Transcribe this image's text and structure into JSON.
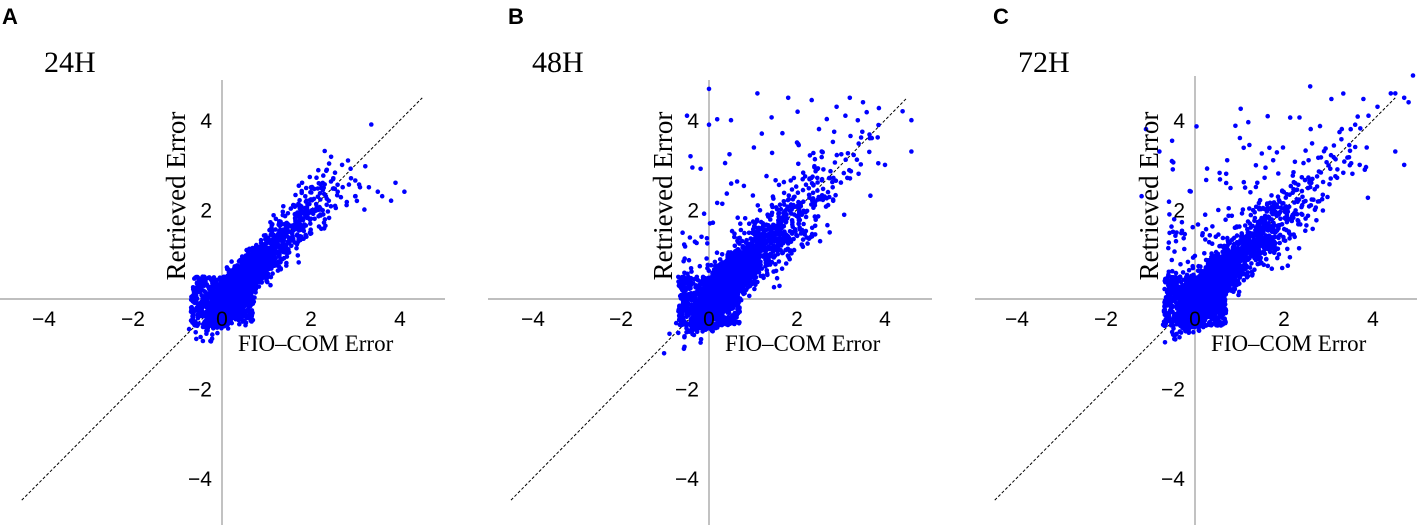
{
  "chart_data": [
    {
      "panel": "A",
      "type": "scatter",
      "title": "24H",
      "xlabel": "FIO–COM Error",
      "ylabel": "Retrieved Error",
      "xlim": [
        -5,
        5
      ],
      "ylim": [
        -5,
        5
      ],
      "xticks": [
        "−4",
        "−2",
        "0",
        "2",
        "4"
      ],
      "yticks": [
        "4",
        "2",
        "−2",
        "−4"
      ],
      "reference_line": {
        "x": [
          -4.5,
          4.5
        ],
        "y": [
          -4.5,
          4.5
        ]
      },
      "marker_color": "#0000ff",
      "cluster": {
        "center": [
          0.3,
          0.2
        ],
        "core_spread": 0.28,
        "slope": 0.95,
        "noise": 0.22,
        "tail_x_max": 2.2,
        "tail_noise": 0.35,
        "outlier_count": 0
      },
      "points": [
        [
          2.7,
          3.0
        ],
        [
          2.9,
          2.7
        ],
        [
          3.1,
          2.5
        ],
        [
          3.3,
          2.5
        ],
        [
          3.5,
          2.4
        ],
        [
          3.6,
          2.3
        ],
        [
          3.8,
          2.2
        ],
        [
          2.8,
          2.1
        ],
        [
          3.2,
          2.0
        ],
        [
          3.9,
          2.6
        ],
        [
          4.1,
          2.4
        ],
        [
          2.5,
          2.7
        ],
        [
          2.6,
          2.4
        ],
        [
          2.4,
          2.2
        ],
        [
          3.0,
          2.3
        ],
        [
          1.8,
          2.6
        ],
        [
          2.0,
          2.5
        ],
        [
          1.9,
          2.2
        ],
        [
          1.6,
          2.1
        ],
        [
          2.2,
          2.0
        ]
      ]
    },
    {
      "panel": "B",
      "type": "scatter",
      "title": "48H",
      "xlabel": "FIO–COM Error",
      "ylabel": "Retrieved Error",
      "xlim": [
        -5,
        5
      ],
      "ylim": [
        -5,
        5
      ],
      "xticks": [
        "−4",
        "−2",
        "0",
        "2",
        "4"
      ],
      "yticks": [
        "4",
        "2",
        "−2",
        "−4"
      ],
      "reference_line": {
        "x": [
          -4.5,
          4.5
        ],
        "y": [
          -4.5,
          4.5
        ]
      },
      "marker_color": "#0000ff",
      "cluster": {
        "center": [
          0.3,
          0.2
        ],
        "core_spread": 0.3,
        "slope": 0.9,
        "noise": 0.25,
        "tail_x_max": 2.4,
        "tail_noise": 0.45,
        "outlier_count": 150
      },
      "points": [
        [
          0.0,
          4.7
        ],
        [
          1.1,
          4.6
        ],
        [
          1.8,
          4.5
        ],
        [
          3.2,
          4.5
        ],
        [
          3.5,
          4.4
        ],
        [
          4.4,
          4.2
        ],
        [
          4.6,
          4.0
        ],
        [
          2.9,
          4.3
        ],
        [
          3.1,
          4.1
        ],
        [
          4.6,
          3.3
        ],
        [
          -0.5,
          4.1
        ],
        [
          0.0,
          3.9
        ],
        [
          0.5,
          4.0
        ],
        [
          1.2,
          3.7
        ],
        [
          2.0,
          3.5
        ],
        [
          2.5,
          3.8
        ],
        [
          3.7,
          3.6
        ],
        [
          4.0,
          3.0
        ],
        [
          3.4,
          2.8
        ],
        [
          2.6,
          2.9
        ]
      ]
    },
    {
      "panel": "C",
      "type": "scatter",
      "title": "72H",
      "xlabel": "FIO–COM Error",
      "ylabel": "Retrieved Error",
      "xlim": [
        -5,
        5
      ],
      "ylim": [
        -5,
        5
      ],
      "xticks": [
        "−4",
        "−2",
        "0",
        "2",
        "4"
      ],
      "yticks": [
        "4",
        "2",
        "−2",
        "−4"
      ],
      "reference_line": {
        "x": [
          -4.5,
          4.5
        ],
        "y": [
          -4.5,
          4.5
        ]
      },
      "marker_color": "#0000ff",
      "cluster": {
        "center": [
          0.3,
          0.2
        ],
        "core_spread": 0.3,
        "slope": 0.9,
        "noise": 0.25,
        "tail_x_max": 2.4,
        "tail_noise": 0.4,
        "outlier_count": 180
      },
      "points": [
        [
          4.4,
          4.6
        ],
        [
          4.5,
          4.6
        ],
        [
          4.8,
          4.4
        ],
        [
          4.9,
          5.0
        ],
        [
          4.7,
          4.5
        ],
        [
          4.1,
          4.3
        ],
        [
          3.9,
          4.1
        ],
        [
          3.6,
          3.9
        ],
        [
          3.3,
          3.8
        ],
        [
          2.6,
          3.8
        ],
        [
          4.7,
          3.0
        ],
        [
          4.5,
          3.3
        ],
        [
          3.7,
          3.0
        ],
        [
          3.2,
          2.9
        ],
        [
          -1.1,
          3.8
        ],
        [
          -0.8,
          3.3
        ],
        [
          -0.5,
          2.9
        ],
        [
          -1.2,
          2.3
        ],
        [
          0.7,
          2.8
        ],
        [
          1.4,
          2.6
        ]
      ]
    }
  ]
}
